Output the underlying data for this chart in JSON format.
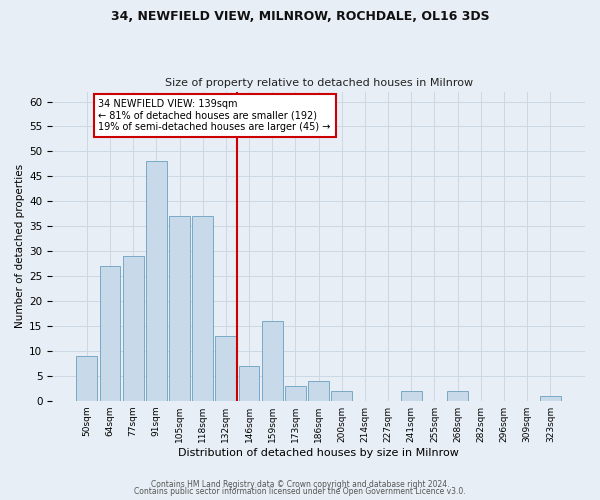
{
  "title1": "34, NEWFIELD VIEW, MILNROW, ROCHDALE, OL16 3DS",
  "title2": "Size of property relative to detached houses in Milnrow",
  "xlabel": "Distribution of detached houses by size in Milnrow",
  "ylabel": "Number of detached properties",
  "categories": [
    "50sqm",
    "64sqm",
    "77sqm",
    "91sqm",
    "105sqm",
    "118sqm",
    "132sqm",
    "146sqm",
    "159sqm",
    "173sqm",
    "186sqm",
    "200sqm",
    "214sqm",
    "227sqm",
    "241sqm",
    "255sqm",
    "268sqm",
    "282sqm",
    "296sqm",
    "309sqm",
    "323sqm"
  ],
  "values": [
    9,
    27,
    29,
    48,
    37,
    37,
    13,
    7,
    16,
    3,
    4,
    2,
    0,
    0,
    2,
    0,
    2,
    0,
    0,
    0,
    1
  ],
  "bar_color": "#c8d9ea",
  "bar_edge_color": "#6a9fc0",
  "marker_bin_index": 6.5,
  "annotation_text": "34 NEWFIELD VIEW: 139sqm\n← 81% of detached houses are smaller (192)\n19% of semi-detached houses are larger (45) →",
  "annotation_box_color": "#ffffff",
  "annotation_box_edge": "#cc0000",
  "vline_color": "#cc0000",
  "ylim": [
    0,
    62
  ],
  "yticks": [
    0,
    5,
    10,
    15,
    20,
    25,
    30,
    35,
    40,
    45,
    50,
    55,
    60
  ],
  "grid_color": "#ccd8e4",
  "footer1": "Contains HM Land Registry data © Crown copyright and database right 2024.",
  "footer2": "Contains public sector information licensed under the Open Government Licence v3.0.",
  "bg_color": "#e8eef5"
}
